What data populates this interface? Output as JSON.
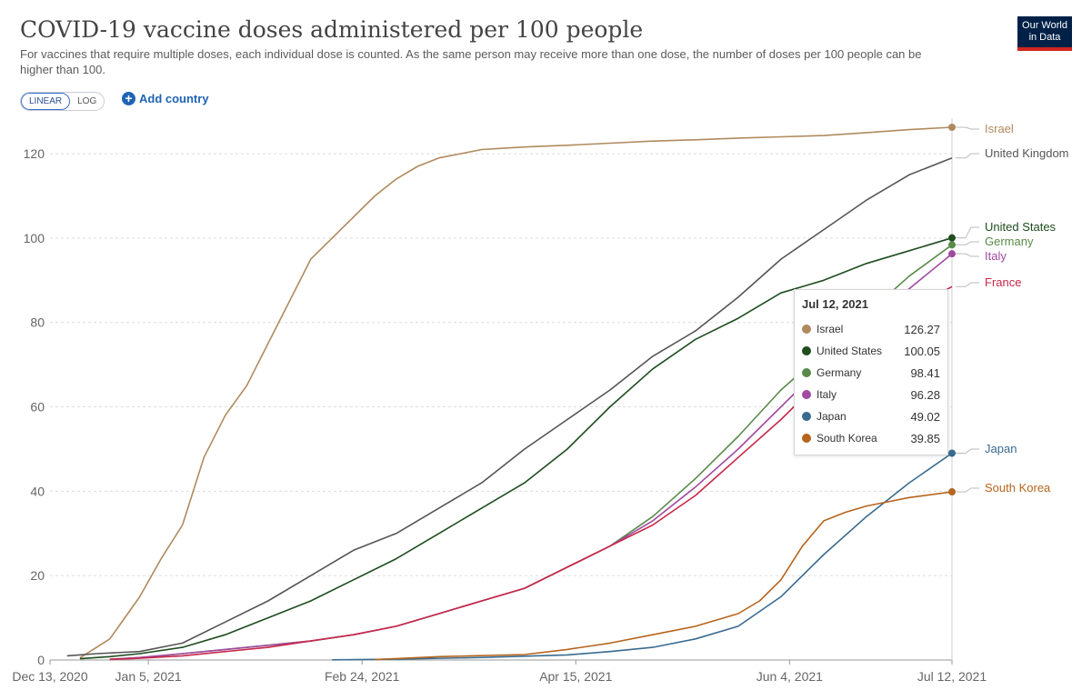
{
  "header": {
    "title": "COVID-19 vaccine doses administered per 100 people",
    "subtitle": "For vaccines that require multiple doses, each individual dose is counted. As the same person may receive more than one dose, the number of doses per 100 people can be higher than 100.",
    "logo_line1": "Our World",
    "logo_line2": "in Data"
  },
  "controls": {
    "linear_label": "LINEAR",
    "log_label": "LOG",
    "add_country_label": "Add country"
  },
  "tooltip": {
    "date": "Jul 12, 2021",
    "rows": [
      {
        "name": "Israel",
        "value": "126.27",
        "color": "#b08a5e"
      },
      {
        "name": "United States",
        "value": "100.05",
        "color": "#1e4d1e"
      },
      {
        "name": "Germany",
        "value": "98.41",
        "color": "#5a8a4a"
      },
      {
        "name": "Italy",
        "value": "96.28",
        "color": "#a04aa0"
      },
      {
        "name": "Japan",
        "value": "49.02",
        "color": "#3a6a90"
      },
      {
        "name": "South Korea",
        "value": "39.85",
        "color": "#b5651d"
      }
    ]
  },
  "chart_data": {
    "type": "line",
    "title": "COVID-19 vaccine doses administered per 100 people",
    "scale": "linear",
    "ylim": [
      0,
      126.27
    ],
    "y_ticks": [
      0,
      20,
      40,
      60,
      80,
      100,
      120
    ],
    "x_ticks": [
      "Dec 13, 2020",
      "Jan 5, 2021",
      "Feb 24, 2021",
      "Apr 15, 2021",
      "Jun 4, 2021",
      "Jul 12, 2021"
    ],
    "x_tick_days": [
      0,
      23,
      73,
      123,
      173,
      211
    ],
    "grid": true,
    "series": [
      {
        "name": "Israel",
        "color": "#b08a5e",
        "x": [
          7,
          14,
          21,
          26,
          31,
          36,
          41,
          46,
          51,
          56,
          61,
          66,
          71,
          76,
          81,
          86,
          91,
          96,
          101,
          106,
          111,
          116,
          121,
          131,
          141,
          151,
          161,
          171,
          181,
          191,
          201,
          211
        ],
        "y": [
          0.5,
          5,
          15,
          24,
          32,
          48,
          58,
          65,
          75,
          85,
          95,
          100,
          105,
          110,
          114,
          117,
          119,
          120,
          121,
          121.3,
          121.6,
          121.8,
          122,
          122.5,
          123,
          123.3,
          123.7,
          124,
          124.3,
          125,
          125.7,
          126.27
        ]
      },
      {
        "name": "United Kingdom",
        "color": "#555555",
        "x": [
          4,
          11,
          21,
          31,
          41,
          51,
          61,
          71,
          81,
          91,
          101,
          111,
          121,
          131,
          141,
          151,
          161,
          171,
          181,
          191,
          201,
          211
        ],
        "y": [
          1,
          1.5,
          2,
          4,
          9,
          14,
          20,
          26,
          30,
          36,
          42,
          50,
          57,
          64,
          72,
          78,
          86,
          95,
          102,
          109,
          115,
          119
        ]
      },
      {
        "name": "United States",
        "color": "#1e4d1e",
        "x": [
          7,
          14,
          21,
          31,
          41,
          51,
          61,
          71,
          81,
          91,
          101,
          111,
          121,
          131,
          141,
          151,
          161,
          171,
          181,
          191,
          201,
          211
        ],
        "y": [
          0.3,
          0.8,
          1.5,
          3,
          6,
          10,
          14,
          19,
          24,
          30,
          36,
          42,
          50,
          60,
          69,
          76,
          81,
          87,
          90,
          94,
          97,
          100.05
        ]
      },
      {
        "name": "Germany",
        "color": "#5a8a4a",
        "x": [
          14,
          21,
          31,
          41,
          51,
          61,
          71,
          81,
          91,
          101,
          111,
          121,
          131,
          141,
          151,
          161,
          171,
          181,
          191,
          201,
          211
        ],
        "y": [
          0.2,
          0.5,
          1.5,
          2.5,
          3.5,
          4.5,
          6,
          8,
          11,
          14,
          17,
          22,
          27,
          34,
          43,
          53,
          64,
          73,
          82,
          91,
          98.41
        ]
      },
      {
        "name": "Italy",
        "color": "#a04aa0",
        "x": [
          14,
          21,
          31,
          41,
          51,
          61,
          71,
          81,
          91,
          101,
          111,
          121,
          131,
          141,
          151,
          161,
          171,
          181,
          191,
          201,
          211
        ],
        "y": [
          0.2,
          0.6,
          1.5,
          2.5,
          3.5,
          4.5,
          6,
          8,
          11,
          14,
          17,
          22,
          27,
          33,
          41,
          50,
          60,
          70,
          79,
          88,
          96.28
        ]
      },
      {
        "name": "France",
        "color": "#c8284a",
        "x": [
          14,
          21,
          31,
          41,
          51,
          61,
          71,
          81,
          91,
          101,
          111,
          121,
          131,
          141,
          151,
          161,
          171,
          181,
          191,
          201,
          211
        ],
        "y": [
          0.1,
          0.4,
          1,
          2,
          3,
          4.5,
          6,
          8,
          11,
          14,
          17,
          22,
          27,
          32,
          39,
          48,
          57,
          67,
          76,
          83,
          88.5
        ]
      },
      {
        "name": "Japan",
        "color": "#3a6a90",
        "x": [
          66,
          81,
          101,
          121,
          131,
          141,
          151,
          161,
          171,
          181,
          191,
          201,
          211
        ],
        "y": [
          0.05,
          0.2,
          0.6,
          1.2,
          2,
          3,
          5,
          8,
          15,
          25,
          34,
          42,
          49.02
        ]
      },
      {
        "name": "South Korea",
        "color": "#b5651d",
        "x": [
          76,
          91,
          111,
          121,
          131,
          141,
          151,
          161,
          166,
          171,
          176,
          181,
          186,
          191,
          196,
          201,
          211
        ],
        "y": [
          0.1,
          0.8,
          1.3,
          2.5,
          4,
          6,
          8,
          11,
          14,
          19,
          27,
          33,
          35,
          36.5,
          37.5,
          38.5,
          39.85
        ]
      }
    ]
  }
}
